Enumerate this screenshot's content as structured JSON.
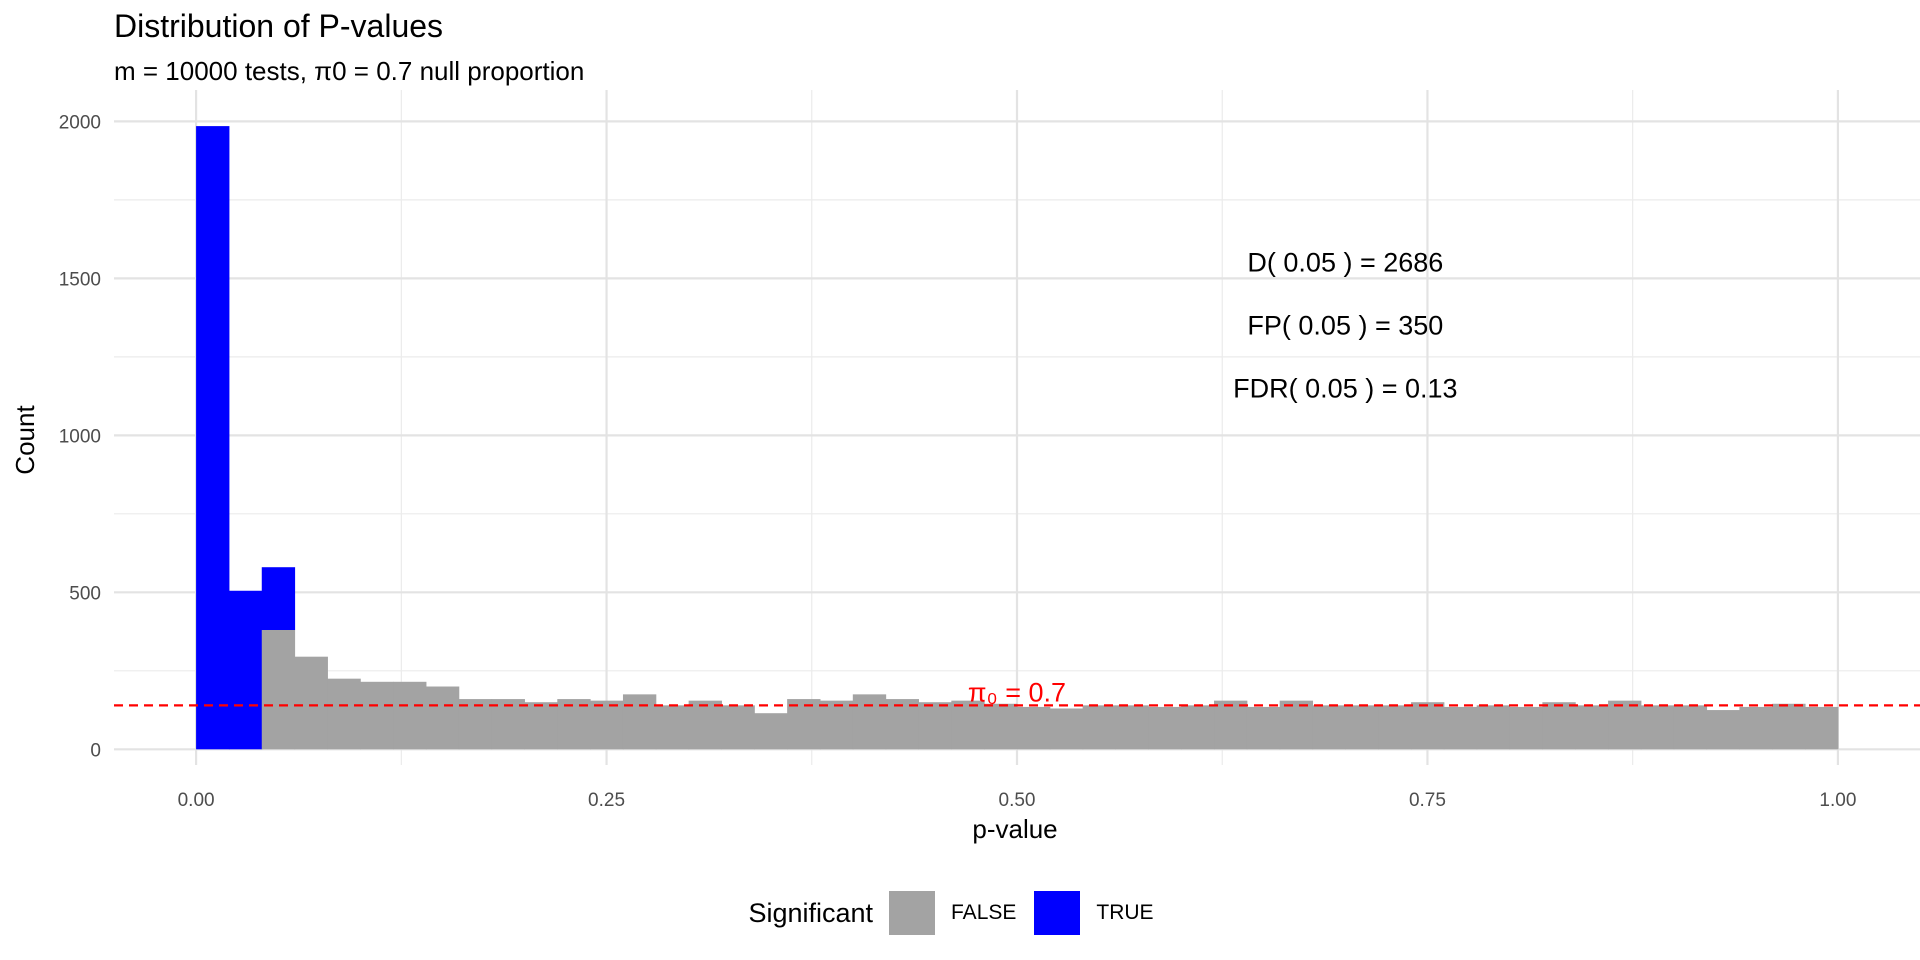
{
  "chart_data": {
    "type": "bar",
    "title": "Distribution of P-values",
    "subtitle": "m = 10000 tests, π0 = 0.7 null proportion",
    "xlabel": "p-value",
    "ylabel": "Count",
    "xlim": [
      -0.05,
      1.05
    ],
    "ylim": [
      -50,
      2100
    ],
    "x_ticks": [
      0,
      0.25,
      0.5,
      0.75,
      1.0
    ],
    "x_tick_labels": [
      "0.00",
      "0.25",
      "0.50",
      "0.75",
      "1.00"
    ],
    "y_ticks": [
      0,
      500,
      1000,
      1500,
      2000
    ],
    "y_tick_labels": [
      "0",
      "500",
      "1000",
      "1500",
      "2000"
    ],
    "bin_width": 0.02,
    "bin_start": 0,
    "series": [
      {
        "name": "FALSE",
        "color": "#A3A3A3",
        "values": [
          0,
          0,
          380,
          295,
          225,
          215,
          215,
          200,
          160,
          160,
          150,
          160,
          155,
          175,
          140,
          155,
          140,
          115,
          160,
          155,
          175,
          160,
          150,
          155,
          145,
          135,
          130,
          140,
          140,
          135,
          140,
          155,
          135,
          155,
          140,
          140,
          140,
          150,
          135,
          140,
          135,
          150,
          140,
          155,
          140,
          140,
          125,
          135,
          145,
          135
        ]
      },
      {
        "name": "TRUE",
        "color": "#0000FF",
        "values": [
          1985,
          505,
          200,
          0,
          0,
          0,
          0,
          0,
          0,
          0,
          0,
          0,
          0,
          0,
          0,
          0,
          0,
          0,
          0,
          0,
          0,
          0,
          0,
          0,
          0,
          0,
          0,
          0,
          0,
          0,
          0,
          0,
          0,
          0,
          0,
          0,
          0,
          0,
          0,
          0,
          0,
          0,
          0,
          0,
          0,
          0,
          0,
          0,
          0,
          0
        ]
      }
    ],
    "reference_line": {
      "y": 140,
      "color": "#FF0000",
      "style": "dashed",
      "label": "π₀ = 0.7"
    },
    "annotations": [
      "D( 0.05 ) = 2686",
      "FP( 0.05 ) = 350",
      "FDR( 0.05 ) = 0.13"
    ],
    "legend": {
      "title": "Significant",
      "placement": "bottom",
      "entries": [
        "FALSE",
        "TRUE"
      ]
    },
    "grid": true
  }
}
